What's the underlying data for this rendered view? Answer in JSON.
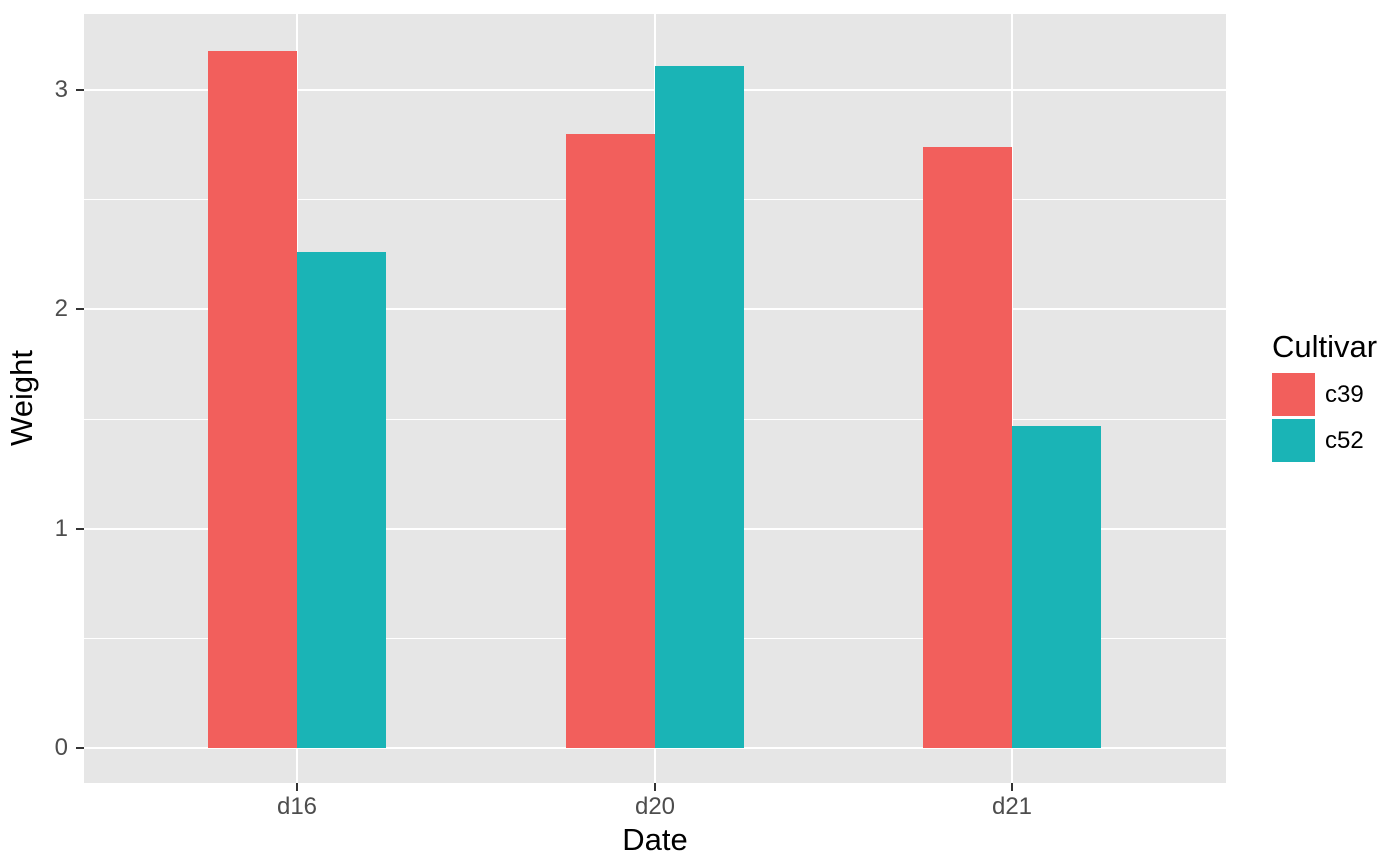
{
  "chart_data": {
    "type": "bar",
    "mode": "grouped-dodged",
    "title": "",
    "xlabel": "Date",
    "ylabel": "Weight",
    "categories": [
      "d16",
      "d20",
      "d21"
    ],
    "series": [
      {
        "name": "c39",
        "color": "#F25F5C",
        "values": [
          3.18,
          2.8,
          2.74
        ]
      },
      {
        "name": "c52",
        "color": "#1AB4B6",
        "values": [
          2.26,
          3.11,
          1.47
        ]
      }
    ],
    "y_major_ticks": [
      0,
      1,
      2,
      3
    ],
    "y_minor_gridlines": [
      0.5,
      1.5,
      2.5
    ],
    "ylim": [
      -0.16,
      3.35
    ],
    "grid": "on",
    "legend": {
      "title": "Cultivar",
      "position": "right"
    },
    "style": {
      "panel_background": "#E6E6E6",
      "grid_color": "#FFFFFF",
      "tick_mark_color": "#333333",
      "tick_label_color": "#4D4D4D",
      "title_color": "#000000",
      "figure_background": "#FFFFFF"
    }
  }
}
